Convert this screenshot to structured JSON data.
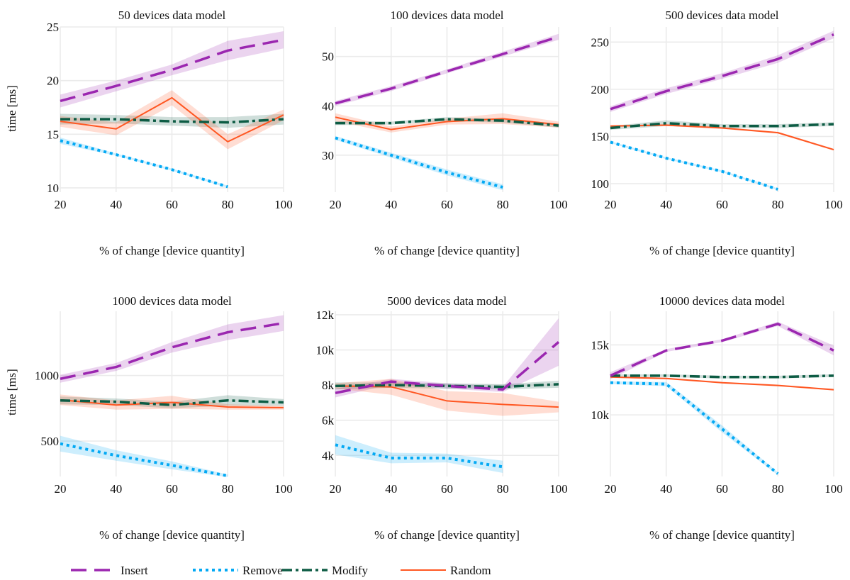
{
  "figure": {
    "ylabel_top": "time [ms]",
    "ylabel_bottom": "time [ms]"
  },
  "legend": [
    {
      "name": "Insert",
      "color": "#9b27b0",
      "dash": "long-dash"
    },
    {
      "name": "Remove",
      "color": "#03a9f4",
      "dash": "dotted"
    },
    {
      "name": "Modify",
      "color": "#0d5c44",
      "dash": "dash-dot"
    },
    {
      "name": "Random",
      "color": "#ff5722",
      "dash": "solid"
    }
  ],
  "chart_data": [
    {
      "type": "line",
      "title": "50 devices data model",
      "xlabel": "% of change [device quantity]",
      "ylabel": "time [ms]",
      "xlim": [
        20,
        100
      ],
      "ylim": [
        9.6,
        25
      ],
      "xticks": [
        20,
        40,
        60,
        80,
        100
      ],
      "xtick_labels": [
        "20",
        "40",
        "60",
        "80",
        "100"
      ],
      "yticks": [
        10,
        15,
        20,
        25
      ],
      "ytick_labels": [
        "10",
        "15",
        "20",
        "25"
      ],
      "grid": true,
      "series": [
        {
          "name": "Insert",
          "x": [
            20,
            40,
            60,
            80,
            100
          ],
          "y": [
            18.1,
            19.5,
            21.0,
            22.8,
            23.8
          ],
          "band": [
            0.6,
            0.5,
            0.5,
            0.9,
            0.8
          ]
        },
        {
          "name": "Remove",
          "x": [
            20,
            40,
            60,
            80
          ],
          "y": [
            14.4,
            13.1,
            11.7,
            10.1
          ],
          "band": [
            0.3,
            0.1,
            0.1,
            0.1
          ]
        },
        {
          "name": "Modify",
          "x": [
            20,
            40,
            60,
            80,
            100
          ],
          "y": [
            16.4,
            16.4,
            16.2,
            16.1,
            16.4
          ],
          "band": [
            0.5,
            0.4,
            0.4,
            0.5,
            0.5
          ]
        },
        {
          "name": "Random",
          "x": [
            20,
            40,
            60,
            80,
            100
          ],
          "y": [
            16.2,
            15.5,
            18.4,
            14.3,
            16.8
          ],
          "band": [
            0.5,
            0.6,
            0.7,
            0.7,
            0.5
          ]
        }
      ]
    },
    {
      "type": "line",
      "title": "100 devices data model",
      "xlabel": "% of change [device quantity]",
      "ylabel": "",
      "xlim": [
        20,
        100
      ],
      "ylim": [
        22.5,
        56
      ],
      "xticks": [
        20,
        40,
        60,
        80,
        100
      ],
      "xtick_labels": [
        "20",
        "40",
        "60",
        "80",
        "100"
      ],
      "yticks": [
        30,
        40,
        50
      ],
      "ytick_labels": [
        "30",
        "40",
        "50"
      ],
      "grid": true,
      "series": [
        {
          "name": "Insert",
          "x": [
            20,
            40,
            60,
            80,
            100
          ],
          "y": [
            40.5,
            43.5,
            47.0,
            50.5,
            54.0
          ],
          "band": [
            0.5,
            0.5,
            0.4,
            0.5,
            0.6
          ]
        },
        {
          "name": "Remove",
          "x": [
            20,
            40,
            60,
            80
          ],
          "y": [
            33.5,
            30.0,
            26.5,
            23.5
          ],
          "band": [
            0.4,
            0.5,
            0.6,
            0.6
          ]
        },
        {
          "name": "Modify",
          "x": [
            20,
            40,
            60,
            80,
            100
          ],
          "y": [
            36.5,
            36.5,
            37.3,
            37.0,
            36.0
          ],
          "band": [
            0.4,
            0.3,
            0.4,
            0.4,
            0.4
          ]
        },
        {
          "name": "Random",
          "x": [
            20,
            40,
            60,
            80,
            100
          ],
          "y": [
            37.7,
            35.2,
            36.8,
            37.4,
            36.2
          ],
          "band": [
            0.8,
            0.6,
            0.6,
            1.1,
            0.6
          ]
        }
      ]
    },
    {
      "type": "line",
      "title": "500 devices data model",
      "xlabel": "% of change [device quantity]",
      "ylabel": "",
      "xlim": [
        20,
        100
      ],
      "ylim": [
        91,
        266
      ],
      "xticks": [
        20,
        40,
        60,
        80,
        100
      ],
      "xtick_labels": [
        "20",
        "40",
        "60",
        "80",
        "100"
      ],
      "yticks": [
        100,
        150,
        200,
        250
      ],
      "ytick_labels": [
        "100",
        "150",
        "200",
        "250"
      ],
      "grid": true,
      "series": [
        {
          "name": "Insert",
          "x": [
            20,
            40,
            60,
            80,
            100
          ],
          "y": [
            179,
            198,
            214,
            232,
            258
          ],
          "band": [
            3,
            3,
            3,
            4,
            4
          ]
        },
        {
          "name": "Remove",
          "x": [
            20,
            40,
            60,
            80
          ],
          "y": [
            144,
            127,
            113,
            94
          ],
          "band": [
            1,
            1,
            1,
            1
          ]
        },
        {
          "name": "Modify",
          "x": [
            20,
            40,
            60,
            80,
            100
          ],
          "y": [
            159,
            164,
            161,
            161,
            163
          ],
          "band": [
            2,
            3,
            2,
            2,
            2
          ]
        },
        {
          "name": "Random",
          "x": [
            20,
            40,
            60,
            80,
            100
          ],
          "y": [
            161,
            162,
            159,
            154,
            136
          ],
          "band": [
            1,
            1,
            1,
            1,
            1
          ]
        }
      ]
    },
    {
      "type": "line",
      "title": "1000 devices data model",
      "xlabel": "% of change [device quantity]",
      "ylabel": "time [ms]",
      "xlim": [
        20,
        100
      ],
      "ylim": [
        230,
        1490
      ],
      "xticks": [
        20,
        40,
        60,
        80,
        100
      ],
      "xtick_labels": [
        "20",
        "40",
        "60",
        "80",
        "100"
      ],
      "yticks": [
        500,
        1000
      ],
      "ytick_labels": [
        "500",
        "1000"
      ],
      "grid": true,
      "series": [
        {
          "name": "Insert",
          "x": [
            20,
            40,
            60,
            80,
            100
          ],
          "y": [
            975,
            1065,
            1215,
            1330,
            1400
          ],
          "band": [
            30,
            30,
            40,
            60,
            60
          ]
        },
        {
          "name": "Remove",
          "x": [
            20,
            40,
            60,
            80
          ],
          "y": [
            480,
            390,
            315,
            235
          ],
          "band": [
            60,
            40,
            30,
            10
          ]
        },
        {
          "name": "Modify",
          "x": [
            20,
            40,
            60,
            80,
            100
          ],
          "y": [
            810,
            800,
            775,
            810,
            795
          ],
          "band": [
            30,
            25,
            25,
            40,
            25
          ]
        },
        {
          "name": "Random",
          "x": [
            20,
            40,
            60,
            80,
            100
          ],
          "y": [
            815,
            775,
            795,
            760,
            755
          ],
          "band": [
            40,
            35,
            50,
            20,
            15
          ]
        }
      ]
    },
    {
      "type": "line",
      "title": "5000 devices data model",
      "xlabel": "% of change [device quantity]",
      "ylabel": "",
      "xlim": [
        20,
        100
      ],
      "ylim": [
        2800,
        12200
      ],
      "xticks": [
        20,
        40,
        60,
        80,
        100
      ],
      "xtick_labels": [
        "20",
        "40",
        "60",
        "80",
        "100"
      ],
      "yticks": [
        4000,
        6000,
        8000,
        10000,
        12000
      ],
      "ytick_labels": [
        "4k",
        "6k",
        "8k",
        "10k",
        "12k"
      ],
      "grid": true,
      "series": [
        {
          "name": "Insert",
          "x": [
            20,
            40,
            60,
            80,
            100
          ],
          "y": [
            7550,
            8200,
            7950,
            7750,
            10450
          ],
          "band": [
            250,
            150,
            150,
            150,
            1350
          ]
        },
        {
          "name": "Remove",
          "x": [
            20,
            40,
            60,
            80
          ],
          "y": [
            4600,
            3850,
            3850,
            3350
          ],
          "band": [
            550,
            300,
            250,
            350
          ]
        },
        {
          "name": "Modify",
          "x": [
            20,
            40,
            60,
            80,
            100
          ],
          "y": [
            7950,
            8000,
            7950,
            7900,
            8050
          ],
          "band": [
            200,
            150,
            150,
            150,
            200
          ]
        },
        {
          "name": "Random",
          "x": [
            20,
            40,
            60,
            80,
            100
          ],
          "y": [
            7950,
            7900,
            7100,
            6900,
            6750
          ],
          "band": [
            150,
            450,
            550,
            650,
            300
          ]
        }
      ]
    },
    {
      "type": "line",
      "title": "10000 devices data model",
      "xlabel": "% of change [device quantity]",
      "ylabel": "",
      "xlim": [
        20,
        100
      ],
      "ylim": [
        5600,
        17400
      ],
      "xticks": [
        20,
        40,
        60,
        80,
        100
      ],
      "xtick_labels": [
        "20",
        "40",
        "60",
        "80",
        "100"
      ],
      "yticks": [
        10000,
        15000
      ],
      "ytick_labels": [
        "10k",
        "15k"
      ],
      "grid": true,
      "series": [
        {
          "name": "Insert",
          "x": [
            20,
            40,
            60,
            80,
            100
          ],
          "y": [
            12800,
            14600,
            15300,
            16500,
            14600
          ],
          "band": [
            250,
            100,
            100,
            150,
            350
          ]
        },
        {
          "name": "Remove",
          "x": [
            20,
            40,
            60,
            80
          ],
          "y": [
            12300,
            12200,
            9000,
            5800
          ],
          "band": [
            100,
            150,
            250,
            100
          ]
        },
        {
          "name": "Modify",
          "x": [
            20,
            40,
            60,
            80,
            100
          ],
          "y": [
            12800,
            12800,
            12700,
            12700,
            12800
          ],
          "band": [
            100,
            100,
            100,
            100,
            100
          ]
        },
        {
          "name": "Random",
          "x": [
            20,
            40,
            60,
            80,
            100
          ],
          "y": [
            12700,
            12600,
            12300,
            12100,
            11800
          ],
          "band": [
            60,
            60,
            60,
            60,
            60
          ]
        }
      ]
    }
  ]
}
